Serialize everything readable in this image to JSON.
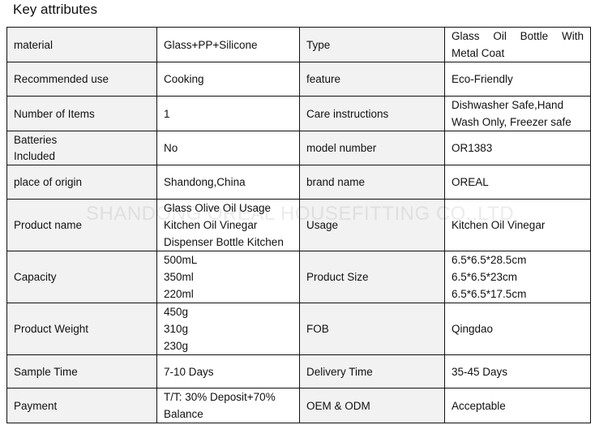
{
  "title": "Key attributes",
  "watermark": "SHANDONG OREAL HOUSEFITTING CO.,LTD",
  "rows": [
    {
      "k1": "material",
      "v1": [
        "Glass+PP+Silicone"
      ],
      "k2": "Type",
      "v2": [
        "Glass Oil Bottle With",
        "Metal Coat"
      ]
    },
    {
      "k1": "Recommended use",
      "v1": [
        "Cooking"
      ],
      "k2": "feature",
      "v2": [
        "Eco-Friendly"
      ]
    },
    {
      "k1": "Number of Items",
      "v1": [
        "1"
      ],
      "k2": "Care instructions",
      "v2": [
        "Dishwasher Safe,Hand",
        "Wash Only, Freezer safe"
      ]
    },
    {
      "k1": "Batteries Included",
      "v1": [
        "No"
      ],
      "k2": "model number",
      "v2": [
        "OR1383"
      ]
    },
    {
      "k1": "place of origin",
      "v1": [
        "Shandong,China"
      ],
      "k2": "brand name",
      "v2": [
        "OREAL"
      ]
    },
    {
      "k1": "Product name",
      "v1": [
        "Glass Olive Oil Usage",
        "Kitchen Oil Vinegar",
        "Dispenser Bottle Kitchen"
      ],
      "k2": "Usage",
      "v2": [
        "Kitchen Oil Vinegar"
      ]
    },
    {
      "k1": "Capacity",
      "v1": [
        "500mL",
        "350ml",
        "220ml"
      ],
      "k2": "Product Size",
      "v2": [
        "6.5*6.5*28.5cm",
        "6.5*6.5*23cm",
        "6.5*6.5*17.5cm"
      ]
    },
    {
      "k1": "Product Weight",
      "v1": [
        "450g",
        "310g",
        "230g"
      ],
      "k2": "FOB",
      "v2": [
        "Qingdao"
      ]
    },
    {
      "k1": "Sample Time",
      "v1": [
        "7-10 Days"
      ],
      "k2": "Delivery Time",
      "v2": [
        "35-45 Days"
      ]
    },
    {
      "k1": "Payment",
      "v1": [
        "T/T: 30% Deposit+70%",
        "Balance"
      ],
      "k2": "OEM & ODM",
      "v2": [
        "Acceptable"
      ]
    }
  ]
}
